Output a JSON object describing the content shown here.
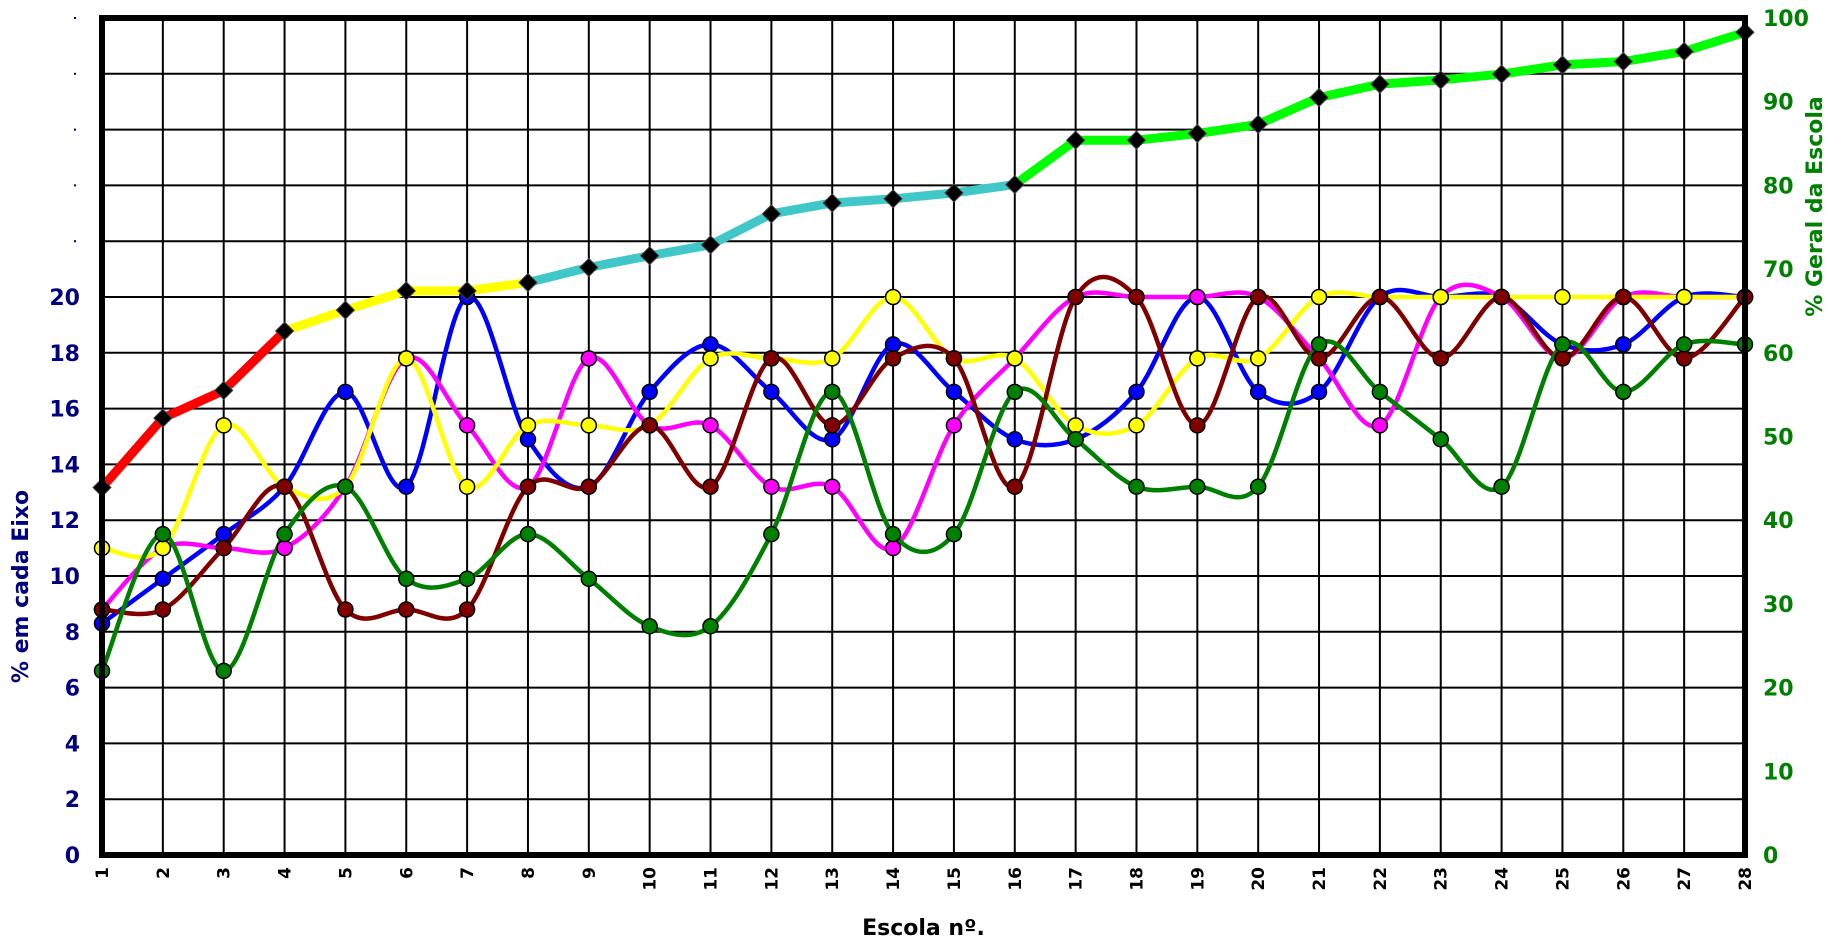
{
  "chart_data": {
    "type": "line",
    "title": "",
    "xlabel": "Escola nº.",
    "ylabel_left": "% em cada Eixo",
    "ylabel_right": "% Geral da Escola",
    "grid": true,
    "x": [
      1,
      2,
      3,
      4,
      5,
      6,
      7,
      8,
      9,
      10,
      11,
      12,
      13,
      14,
      15,
      16,
      17,
      18,
      19,
      20,
      21,
      22,
      23,
      24,
      25,
      26,
      27,
      28
    ],
    "left_axis": {
      "ylim": [
        0,
        30
      ],
      "ticks": [
        0,
        2,
        4,
        6,
        8,
        10,
        12,
        14,
        16,
        18,
        20
      ]
    },
    "right_axis": {
      "ylim": [
        0,
        100
      ],
      "ticks": [
        0,
        10,
        20,
        30,
        40,
        50,
        60,
        70,
        80,
        90,
        100
      ]
    },
    "series": [
      {
        "axis": "left",
        "color": "#0000ff",
        "smooth": true,
        "values": [
          8.3,
          9.9,
          11.5,
          13.2,
          16.6,
          13.2,
          20,
          14.9,
          13.2,
          16.6,
          18.3,
          16.6,
          14.9,
          18.3,
          16.6,
          14.9,
          14.9,
          16.6,
          20,
          16.6,
          16.6,
          20,
          20,
          20,
          18.3,
          18.3,
          20,
          20
        ]
      },
      {
        "axis": "left",
        "color": "#ff00ff",
        "smooth": true,
        "values": [
          8.8,
          11,
          11,
          11,
          13.2,
          17.8,
          15.4,
          13.2,
          17.8,
          15.4,
          15.4,
          13.2,
          13.2,
          11,
          15.4,
          17.8,
          20,
          20,
          20,
          20,
          17.8,
          15.4,
          20,
          20,
          17.8,
          20,
          20,
          20
        ]
      },
      {
        "axis": "left",
        "color": "#ffff00",
        "smooth": true,
        "values": [
          11,
          11,
          15.4,
          13.2,
          13.2,
          17.8,
          13.2,
          15.4,
          15.4,
          15.4,
          17.8,
          17.8,
          17.8,
          20,
          17.8,
          17.8,
          15.4,
          15.4,
          17.8,
          17.8,
          20,
          20,
          20,
          20,
          20,
          20,
          20,
          20
        ]
      },
      {
        "axis": "left",
        "color": "#800000",
        "smooth": true,
        "values": [
          8.8,
          8.8,
          11,
          13.2,
          8.8,
          8.8,
          8.8,
          13.2,
          13.2,
          15.4,
          13.2,
          17.8,
          15.4,
          17.8,
          17.8,
          13.2,
          20,
          20,
          15.4,
          20,
          17.8,
          20,
          17.8,
          20,
          17.8,
          20,
          17.8,
          20
        ]
      },
      {
        "axis": "left",
        "color": "#008000",
        "smooth": true,
        "values": [
          6.6,
          11.5,
          6.6,
          11.5,
          13.2,
          9.9,
          9.9,
          11.5,
          9.9,
          8.2,
          8.2,
          11.5,
          16.6,
          11.5,
          11.5,
          16.6,
          14.9,
          13.2,
          13.2,
          13.2,
          18.3,
          16.6,
          14.9,
          13.2,
          18.3,
          16.6,
          18.3,
          18.3
        ]
      },
      {
        "axis": "right",
        "name_hidden": true,
        "smooth": false,
        "segment_colors": [
          "#ff0000",
          "#ff0000",
          "#ff0000",
          "#ffff00",
          "#ffff00",
          "#ffff00",
          "#ffff00",
          "#40c8c8",
          "#40c8c8",
          "#40c8c8",
          "#40c8c8",
          "#40c8c8",
          "#40c8c8",
          "#40c8c8",
          "#40c8c8",
          "#00ff00",
          "#00ff00",
          "#00ff00",
          "#00ff00",
          "#00ff00",
          "#00ff00",
          "#00ff00",
          "#00ff00",
          "#00ff00",
          "#00ff00",
          "#00ff00",
          "#00ff00"
        ],
        "values": [
          43.9,
          52.2,
          55.5,
          62.6,
          65.1,
          67.4,
          67.4,
          68.4,
          70.2,
          71.6,
          72.9,
          76.6,
          77.9,
          78.4,
          79.1,
          80.1,
          85.4,
          85.4,
          86.2,
          87.3,
          90.5,
          92.1,
          92.6,
          93.3,
          94.4,
          94.8,
          96.0,
          98.3
        ]
      }
    ]
  }
}
